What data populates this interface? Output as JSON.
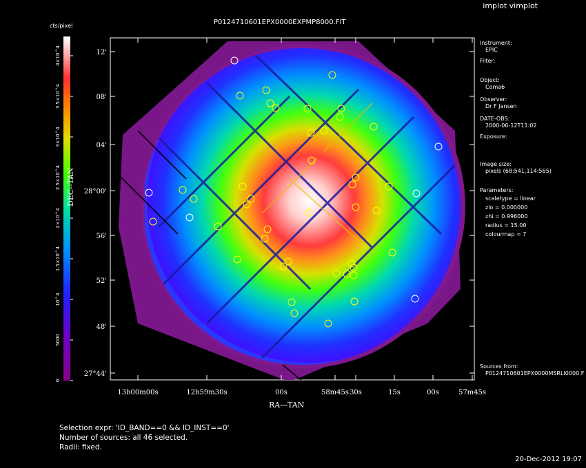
{
  "app_title": "implot vimplot",
  "plot": {
    "title": "P0124710601EPX0000EXPMP8000.FIT",
    "xlabel": "RA---TAN",
    "ylabel": "DEC--TAN",
    "x_ticks": [
      "13h00m00s",
      "12h59m30s",
      "00s",
      "58m45s",
      "30s",
      "15s",
      "00s",
      "57m45s"
    ],
    "y_ticks": [
      "12'",
      "08'",
      "04'",
      "28°00'",
      "56'",
      "52'",
      "48'",
      "27°44'"
    ]
  },
  "colorbar": {
    "label": "cts/pixel",
    "colormap": "rainbow-to-white (colourmap 7)",
    "ticks": [
      "0",
      "5000",
      "10^4",
      "1.5×10^4",
      "2×10^4",
      "2.5×10^4",
      "3×10^4",
      "3.5×10^4",
      "4×10^4"
    ]
  },
  "info": {
    "instrument_label": "Instrument:",
    "instrument": "EPIC",
    "filter_label": "Filter:",
    "object_label": "Object:",
    "object": "Coma6",
    "observer_label": "Observer:",
    "observer": "Dr F Jansen",
    "date_label": "DATE-OBS:",
    "date": "2000-06-12T11:02",
    "exposure_label": "Exposure:",
    "imgsize_label": "Image size:",
    "imgsize": "pixels (68:541,114:565)",
    "params_label": "Parameters:",
    "p_scale": "scaletype = linear",
    "p_zlo": "zlo = 0.000000",
    "p_zhi": "zhi = 0.996000",
    "p_radius": "radius = 15.00",
    "p_cmap": "colourmap = 7",
    "sources_label": "Sources from:",
    "sources_file": "P0124710601EPX0000MSRLI0000.F"
  },
  "footer": {
    "line1": "Selection expr: 'ID_BAND==0 && ID_INST==0'",
    "line2": "Number of sources: all 46 selected.",
    "line3": "Radii: fixed."
  },
  "timestamp": "20-Dec-2012 19:07",
  "chart_data": {
    "type": "heatmap",
    "title": "P0124710601EPX0000EXPMP8000.FIT",
    "xlabel": "RA---TAN",
    "ylabel": "DEC--TAN",
    "value_label": "cts/pixel",
    "value_range": [
      0,
      42000
    ],
    "peak": "centre near RA 12h58m47s, DEC 27°59'",
    "sources_plotted": 46,
    "source_marker_colors": {
      "central": "#ffff00",
      "outer": "#ffffff"
    }
  }
}
